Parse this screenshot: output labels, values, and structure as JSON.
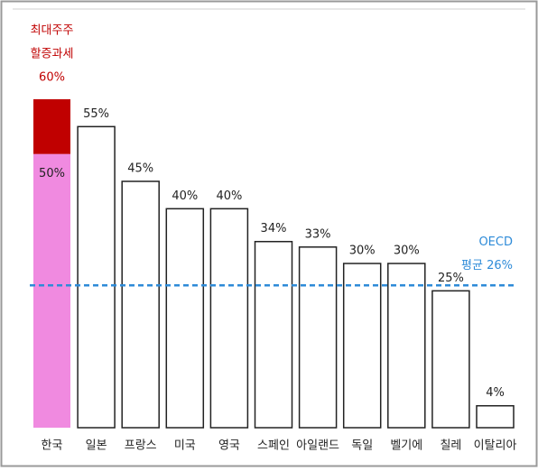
{
  "chart_data": {
    "type": "bar",
    "categories": [
      "한국",
      "일본",
      "프랑스",
      "미국",
      "영국",
      "스페인",
      "아일랜드",
      "독일",
      "벨기에",
      "칠레",
      "이탈리아"
    ],
    "values": [
      50,
      55,
      45,
      40,
      40,
      34,
      33,
      30,
      30,
      25,
      4
    ],
    "value_labels": [
      "50%",
      "55%",
      "45%",
      "40%",
      "40%",
      "34%",
      "33%",
      "30%",
      "30%",
      "25%",
      "4%"
    ],
    "colors": [
      "#f08ae0",
      "#ffffff",
      "#ffffff",
      "#ffffff",
      "#ffffff",
      "#ffffff",
      "#ffffff",
      "#ffffff",
      "#ffffff",
      "#ffffff",
      "#ffffff"
    ],
    "surcharge": {
      "values": [
        10,
        null,
        null,
        null,
        null,
        null,
        null,
        null,
        null,
        null,
        null
      ],
      "color": "#c00000"
    },
    "surcharge_annotation": {
      "lines": [
        "최대주주",
        "할증과세",
        "60%"
      ],
      "value": 60,
      "color": "#c00000"
    },
    "reference_line": {
      "value": 26,
      "lines": [
        "OECD",
        "평균 26%"
      ],
      "color": "#2e8bd8"
    },
    "ylim": [
      0,
      60
    ]
  }
}
